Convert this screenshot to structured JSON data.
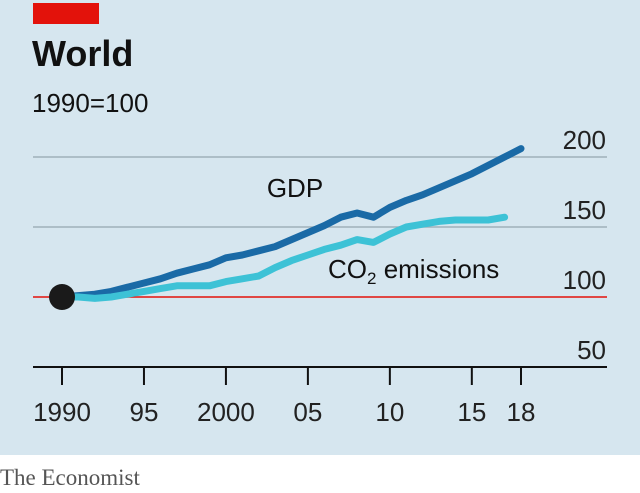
{
  "chart_data": {
    "type": "line",
    "title": "World",
    "subtitle": "1990=100",
    "source": "The Economist",
    "x_ticks": [
      1990,
      1995,
      2000,
      2005,
      2010,
      2015,
      2018
    ],
    "x_tick_labels": [
      "1990",
      "95",
      "2000",
      "05",
      "10",
      "15",
      "18"
    ],
    "y_ticks": [
      50,
      100,
      150,
      200
    ],
    "y_tick_labels": [
      "50",
      "100",
      "150",
      "200"
    ],
    "ylim": [
      50,
      200
    ],
    "xlim": [
      1990,
      2018
    ],
    "baseline": 100,
    "grid": true,
    "start_marker": {
      "x": 1990,
      "y": 100
    },
    "series": [
      {
        "name": "GDP",
        "color": "#1a6aa6",
        "x": [
          1990,
          1991,
          1992,
          1993,
          1994,
          1995,
          1996,
          1997,
          1998,
          1999,
          2000,
          2001,
          2002,
          2003,
          2004,
          2005,
          2006,
          2007,
          2008,
          2009,
          2010,
          2011,
          2012,
          2013,
          2014,
          2015,
          2016,
          2017,
          2018
        ],
        "values": [
          100,
          101,
          102,
          104,
          107,
          110,
          113,
          117,
          120,
          123,
          128,
          130,
          133,
          136,
          141,
          146,
          151,
          157,
          160,
          157,
          164,
          169,
          173,
          178,
          183,
          188,
          194,
          200,
          206
        ]
      },
      {
        "name": "CO2 emissions",
        "label_main": "CO",
        "label_sub": "2",
        "label_rest": " emissions",
        "color": "#3dc2d6",
        "x": [
          1990,
          1991,
          1992,
          1993,
          1994,
          1995,
          1996,
          1997,
          1998,
          1999,
          2000,
          2001,
          2002,
          2003,
          2004,
          2005,
          2006,
          2007,
          2008,
          2009,
          2010,
          2011,
          2012,
          2013,
          2014,
          2015,
          2016,
          2017
        ],
        "values": [
          100,
          100,
          99,
          100,
          102,
          104,
          106,
          108,
          108,
          108,
          111,
          113,
          115,
          121,
          126,
          130,
          134,
          137,
          141,
          139,
          145,
          150,
          152,
          154,
          155,
          155,
          155,
          157
        ]
      }
    ]
  },
  "colors": {
    "background": "#d6e6ef",
    "accent_bar": "#e3120b",
    "baseline": "#e3120b",
    "grid": "#9fb0ba",
    "axis": "#111111",
    "marker": "#1a1a1a"
  }
}
